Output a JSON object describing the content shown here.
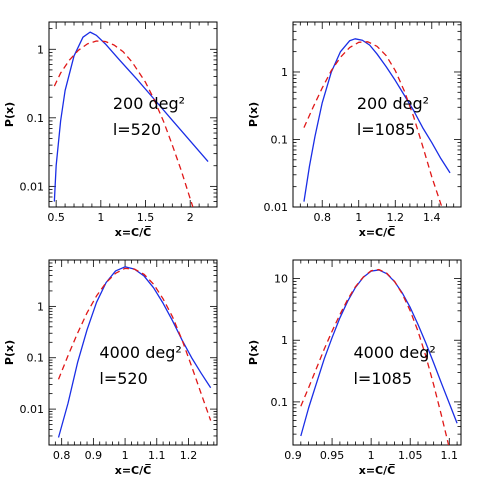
{
  "colors": {
    "solid": "#1a2ee6",
    "dashed": "#e01818"
  },
  "chart_data": [
    {
      "type": "line",
      "yscale": "log",
      "xlim": [
        0.42,
        2.3
      ],
      "ylim": [
        0.005,
        2.5
      ],
      "xticks": [
        {
          "v": 0.5,
          "l": "0.5"
        },
        {
          "v": 1,
          "l": "1"
        },
        {
          "v": 1.5,
          "l": "1.5"
        },
        {
          "v": 2,
          "l": "2"
        }
      ],
      "yticks": [
        {
          "v": 0.01,
          "l": "0.01"
        },
        {
          "v": 0.1,
          "l": "0.1"
        },
        {
          "v": 1,
          "l": "1"
        }
      ],
      "xlabel": "x=C/C̅",
      "ylabel": "P(x)",
      "label_lines": [
        "200 deg²",
        "l=520"
      ],
      "series": [
        {
          "style": "solid",
          "x": [
            0.48,
            0.5,
            0.55,
            0.6,
            0.7,
            0.8,
            0.88,
            0.95,
            1.05,
            1.2,
            1.4,
            1.6,
            1.8,
            2.0,
            2.2
          ],
          "y": [
            0.006,
            0.02,
            0.09,
            0.25,
            0.8,
            1.5,
            1.78,
            1.6,
            1.2,
            0.72,
            0.37,
            0.185,
            0.092,
            0.046,
            0.023
          ]
        },
        {
          "style": "dashed",
          "x": [
            0.48,
            0.55,
            0.65,
            0.75,
            0.85,
            0.95,
            1.05,
            1.15,
            1.25,
            1.35,
            1.5,
            1.6,
            1.7,
            1.8,
            1.9,
            1.98,
            2.03
          ],
          "y": [
            0.29,
            0.45,
            0.7,
            0.97,
            1.2,
            1.32,
            1.3,
            1.15,
            0.92,
            0.65,
            0.33,
            0.18,
            0.09,
            0.04,
            0.017,
            0.008,
            0.005
          ]
        }
      ]
    },
    {
      "type": "line",
      "yscale": "log",
      "xlim": [
        0.64,
        1.56
      ],
      "ylim": [
        0.01,
        5.5
      ],
      "xticks": [
        {
          "v": 0.8,
          "l": "0.8"
        },
        {
          "v": 1,
          "l": "1"
        },
        {
          "v": 1.2,
          "l": "1.2"
        },
        {
          "v": 1.4,
          "l": "1.4"
        }
      ],
      "yticks": [
        {
          "v": 0.01,
          "l": "0.01"
        },
        {
          "v": 0.1,
          "l": "0.1"
        },
        {
          "v": 1,
          "l": "1"
        }
      ],
      "xlabel": "x=C/C̅",
      "ylabel": "P(x)",
      "label_lines": [
        "200 deg²",
        "l=1085"
      ],
      "series": [
        {
          "style": "solid",
          "x": [
            0.7,
            0.73,
            0.76,
            0.8,
            0.85,
            0.9,
            0.95,
            0.98,
            1.02,
            1.06,
            1.1,
            1.15,
            1.2,
            1.25,
            1.3,
            1.35,
            1.4,
            1.45,
            1.5
          ],
          "y": [
            0.012,
            0.04,
            0.11,
            0.35,
            1.0,
            2.0,
            2.9,
            3.1,
            2.95,
            2.5,
            1.85,
            1.2,
            0.75,
            0.45,
            0.27,
            0.15,
            0.09,
            0.052,
            0.032
          ]
        },
        {
          "style": "dashed",
          "x": [
            0.7,
            0.75,
            0.8,
            0.85,
            0.9,
            0.95,
            1.0,
            1.05,
            1.1,
            1.15,
            1.2,
            1.25,
            1.3,
            1.35,
            1.4,
            1.45,
            1.48
          ],
          "y": [
            0.15,
            0.3,
            0.58,
            1.05,
            1.65,
            2.3,
            2.75,
            2.8,
            2.4,
            1.75,
            1.05,
            0.52,
            0.22,
            0.08,
            0.028,
            0.011,
            0.007
          ]
        }
      ]
    },
    {
      "type": "line",
      "yscale": "log",
      "xlim": [
        0.76,
        1.29
      ],
      "ylim": [
        0.002,
        8
      ],
      "xticks": [
        {
          "v": 0.8,
          "l": "0.8"
        },
        {
          "v": 0.9,
          "l": "0.9"
        },
        {
          "v": 1,
          "l": "1"
        },
        {
          "v": 1.1,
          "l": "1.1"
        },
        {
          "v": 1.2,
          "l": "1.2"
        }
      ],
      "yticks": [
        {
          "v": 0.01,
          "l": "0.01"
        },
        {
          "v": 0.1,
          "l": "0.1"
        },
        {
          "v": 1,
          "l": "1"
        }
      ],
      "xlabel": "x=C/C̅",
      "ylabel": "P(x)",
      "label_lines": [
        "4000 deg²",
        "l=520"
      ],
      "series": [
        {
          "style": "solid",
          "x": [
            0.79,
            0.82,
            0.85,
            0.88,
            0.91,
            0.94,
            0.97,
            1.0,
            1.03,
            1.06,
            1.09,
            1.12,
            1.15,
            1.18,
            1.21,
            1.24,
            1.27
          ],
          "y": [
            0.0028,
            0.013,
            0.08,
            0.35,
            1.2,
            2.9,
            4.9,
            5.9,
            5.3,
            3.9,
            2.3,
            1.15,
            0.52,
            0.22,
            0.1,
            0.05,
            0.026
          ]
        },
        {
          "style": "dashed",
          "x": [
            0.79,
            0.82,
            0.85,
            0.88,
            0.91,
            0.94,
            0.97,
            1.0,
            1.03,
            1.06,
            1.09,
            1.12,
            1.15,
            1.18,
            1.21,
            1.24,
            1.27
          ],
          "y": [
            0.038,
            0.11,
            0.3,
            0.75,
            1.6,
            2.9,
            4.4,
            5.5,
            5.3,
            4.2,
            2.7,
            1.4,
            0.62,
            0.22,
            0.068,
            0.02,
            0.006
          ]
        }
      ]
    },
    {
      "type": "line",
      "yscale": "log",
      "xlim": [
        0.9,
        1.115
      ],
      "ylim": [
        0.02,
        20
      ],
      "xticks": [
        {
          "v": 0.9,
          "l": "0.9"
        },
        {
          "v": 0.95,
          "l": "0.95"
        },
        {
          "v": 1,
          "l": "1"
        },
        {
          "v": 1.05,
          "l": "1.05"
        },
        {
          "v": 1.1,
          "l": "1.1"
        }
      ],
      "yticks": [
        {
          "v": 0.1,
          "l": "0.1"
        },
        {
          "v": 1,
          "l": "1"
        },
        {
          "v": 10,
          "l": "10"
        }
      ],
      "xlabel": "x=C/C̅",
      "ylabel": "P(x)",
      "label_lines": [
        "4000 deg²",
        "l=1085"
      ],
      "series": [
        {
          "style": "solid",
          "x": [
            0.91,
            0.92,
            0.93,
            0.94,
            0.95,
            0.96,
            0.97,
            0.98,
            0.99,
            1.0,
            1.01,
            1.02,
            1.03,
            1.04,
            1.05,
            1.06,
            1.07,
            1.08,
            1.09,
            1.1,
            1.11
          ],
          "y": [
            0.028,
            0.08,
            0.2,
            0.5,
            1.1,
            2.3,
            4.3,
            7.2,
            10.5,
            13.2,
            13.8,
            12.0,
            8.9,
            5.8,
            3.4,
            1.8,
            0.9,
            0.43,
            0.2,
            0.095,
            0.045
          ]
        },
        {
          "style": "dashed",
          "x": [
            0.91,
            0.92,
            0.93,
            0.94,
            0.95,
            0.96,
            0.97,
            0.98,
            0.99,
            1.0,
            1.01,
            1.02,
            1.03,
            1.04,
            1.05,
            1.06,
            1.07,
            1.08,
            1.09,
            1.1,
            1.105
          ],
          "y": [
            0.085,
            0.17,
            0.35,
            0.72,
            1.4,
            2.6,
            4.6,
            7.4,
            10.6,
            13.4,
            14.0,
            12.2,
            9.0,
            5.6,
            3.0,
            1.4,
            0.55,
            0.19,
            0.06,
            0.018,
            0.01
          ]
        }
      ]
    }
  ]
}
